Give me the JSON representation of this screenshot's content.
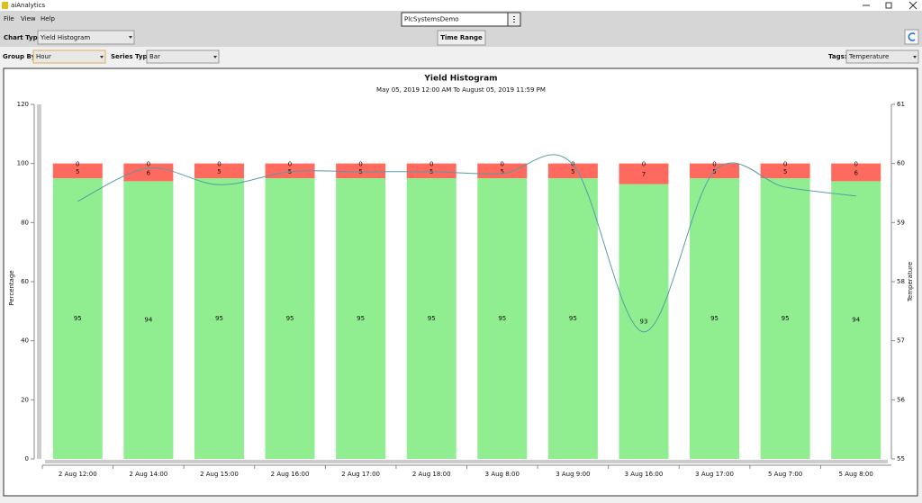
{
  "window": {
    "title": "aiAnalytics"
  },
  "menu": [
    "File",
    "View",
    "Help"
  ],
  "system": "PlcSystemsDemo",
  "toolbar": {
    "chart_type_label": "Chart Type:",
    "chart_type": "Yield Histogram",
    "time_range": "Time Range",
    "group_by_label": "Group By:",
    "group_by": "Hour",
    "series_type_label": "Series Type:",
    "series_type": "Bar",
    "tags_label": "Tags:",
    "tags": "Temperature"
  },
  "chart_data": {
    "type": "bar",
    "stacked": true,
    "title": "Yield Histogram",
    "subtitle": "May 05, 2019 12:00 AM To August 05, 2019 11:59 PM",
    "y_label": "Percentage",
    "y2_label": "Temperature",
    "categories": [
      "2 Aug 12:00",
      "2 Aug 14:00",
      "2 Aug 15:00",
      "2 Aug 16:00",
      "2 Aug 17:00",
      "2 Aug 18:00",
      "3 Aug 8:00",
      "3 Aug 9:00",
      "3 Aug 16:00",
      "3 Aug 17:00",
      "5 Aug 7:00",
      "5 Aug 8:00"
    ],
    "series": [
      {
        "color": "#90ee90",
        "values": [
          95,
          94,
          95,
          95,
          95,
          95,
          95,
          95,
          93,
          95,
          95,
          94
        ]
      },
      {
        "color": "#ff6a5e",
        "values": [
          5,
          6,
          5,
          5,
          5,
          5,
          5,
          5,
          7,
          5,
          5,
          6
        ]
      },
      {
        "values": [
          0,
          0,
          0,
          0,
          0,
          0,
          0,
          0,
          0,
          0,
          0,
          0
        ]
      },
      {
        "type": "line",
        "axis": "y2",
        "color": "#5a9aa8",
        "smooth": true,
        "values": [
          59.36,
          59.92,
          59.64,
          59.86,
          59.86,
          59.86,
          59.83,
          59.98,
          57.15,
          59.87,
          59.6,
          59.45
        ]
      }
    ],
    "ylim": [
      0,
      120
    ],
    "yticks": [
      0,
      20,
      40,
      60,
      80,
      100,
      120
    ],
    "y2lim": [
      55,
      61
    ],
    "y2ticks": [
      55,
      56,
      57,
      58,
      59,
      60,
      61
    ]
  }
}
